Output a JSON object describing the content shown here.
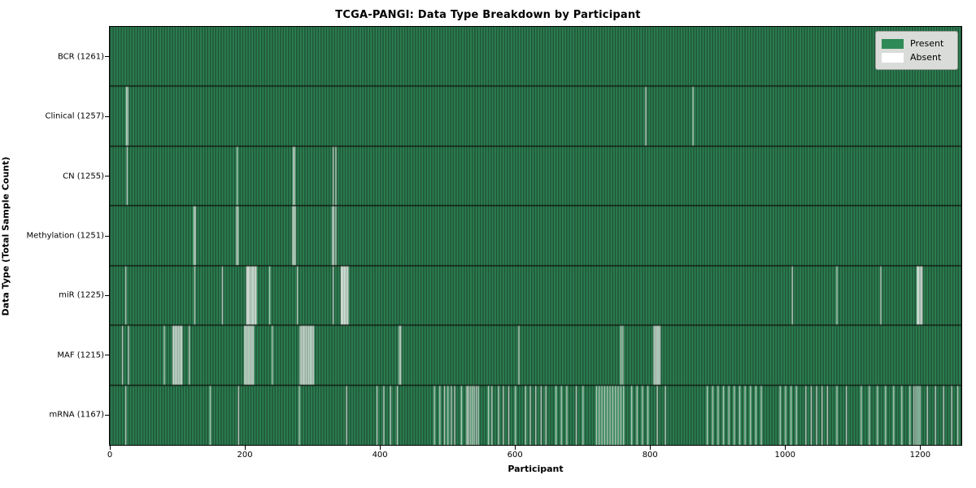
{
  "chart_data": {
    "type": "heatmap",
    "title": "TCGA-PANGI: Data Type Breakdown by Participant",
    "xlabel": "Participant",
    "ylabel": "Data Type (Total Sample Count)",
    "total_participants": 1261,
    "xlim": [
      0,
      1261
    ],
    "xticks": [
      0,
      200,
      400,
      600,
      800,
      1000,
      1200
    ],
    "grid": false,
    "legend": {
      "position": "upper right",
      "background": "#d9dcd9",
      "entries": [
        {
          "label": "Present",
          "color": "#2e8b57"
        },
        {
          "label": "Absent",
          "color": "#ffffff"
        }
      ]
    },
    "colors": {
      "present": "#2e8b57",
      "present_shade": "#1f4a33",
      "absent_stripe": "#dfe4df",
      "row_divider": "#101810"
    },
    "rows": [
      {
        "label": "BCR (1261)",
        "data_type": "BCR",
        "sample_count": 1261,
        "absent_participants": []
      },
      {
        "label": "Clinical (1257)",
        "data_type": "Clinical",
        "sample_count": 1257,
        "absent_participants": [
          24,
          26,
          793,
          863
        ]
      },
      {
        "label": "CN (1255)",
        "data_type": "CN",
        "sample_count": 1255,
        "absent_participants": [
          25,
          188,
          271,
          273,
          330,
          334
        ]
      },
      {
        "label": "Methylation (1251)",
        "data_type": "Methylation",
        "sample_count": 1251,
        "absent_participants": [
          124,
          126,
          187,
          189,
          270,
          272,
          274,
          329,
          331,
          334
        ]
      },
      {
        "label": "miR (1225)",
        "data_type": "miR",
        "sample_count": 1225,
        "absent_participants": [
          23,
          125,
          166,
          202,
          203,
          204,
          205,
          206,
          208,
          210,
          211,
          212,
          214,
          215,
          216,
          236,
          277,
          330,
          342,
          343,
          344,
          346,
          347,
          348,
          350,
          351,
          352,
          1010,
          1076,
          1141,
          1195,
          1196,
          1197,
          1199,
          1201,
          1202
        ]
      },
      {
        "label": "MAF (1215)",
        "data_type": "MAF",
        "sample_count": 1215,
        "absent_participants": [
          18,
          27,
          80,
          93,
          94,
          96,
          98,
          99,
          101,
          103,
          105,
          106,
          117,
          199,
          200,
          202,
          204,
          205,
          207,
          209,
          210,
          212,
          240,
          281,
          283,
          285,
          286,
          288,
          290,
          292,
          294,
          296,
          298,
          299,
          301,
          428,
          430,
          605,
          756,
          759,
          805,
          807,
          809,
          811,
          812,
          814
        ]
      },
      {
        "label": "mRNA (1167)",
        "data_type": "mRNA",
        "sample_count": 1167,
        "absent_participants": [
          23,
          148,
          190,
          280,
          350,
          395,
          405,
          415,
          425,
          480,
          488,
          495,
          500,
          505,
          510,
          520,
          528,
          530,
          533,
          536,
          539,
          542,
          545,
          560,
          565,
          575,
          582,
          590,
          600,
          615,
          622,
          630,
          638,
          645,
          660,
          668,
          676,
          690,
          700,
          720,
          724,
          728,
          732,
          736,
          740,
          744,
          748,
          752,
          756,
          760,
          772,
          780,
          788,
          796,
          810,
          822,
          884,
          892,
          900,
          908,
          916,
          924,
          932,
          940,
          948,
          956,
          964,
          992,
          1000,
          1008,
          1016,
          1030,
          1038,
          1046,
          1054,
          1062,
          1076,
          1090,
          1112,
          1124,
          1136,
          1148,
          1160,
          1172,
          1184,
          1190,
          1193,
          1196,
          1199,
          1210,
          1222,
          1234,
          1246,
          1255
        ]
      }
    ]
  }
}
